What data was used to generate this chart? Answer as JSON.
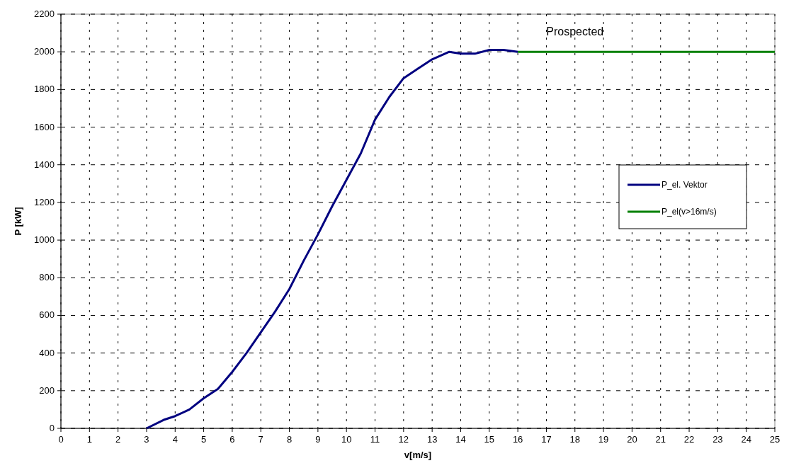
{
  "chart_data": {
    "type": "line",
    "xlabel": "v[m/s]",
    "ylabel": "P [kW]",
    "series": [
      {
        "name": "P_el. Vektor",
        "color": "#000080",
        "x": [
          3,
          3.6,
          4,
          4.5,
          5,
          5.5,
          6,
          6.5,
          7,
          7.5,
          8,
          8.5,
          9,
          9.5,
          10,
          10.5,
          11,
          11.5,
          12,
          12.5,
          13,
          13.6,
          14,
          14.5,
          15,
          15.5,
          16
        ],
        "values": [
          0,
          45,
          65,
          100,
          160,
          210,
          300,
          400,
          510,
          620,
          740,
          890,
          1030,
          1180,
          1320,
          1460,
          1640,
          1760,
          1860,
          1910,
          1960,
          2000,
          1990,
          1990,
          2010,
          2010,
          2000
        ]
      },
      {
        "name": "P_el(v>16m/s)",
        "color": "#008000",
        "x": [
          16,
          25
        ],
        "values": [
          2000,
          2000
        ]
      }
    ],
    "annotations": [
      "Prospected"
    ],
    "xlim": [
      0,
      25
    ],
    "xticks": [
      0,
      1,
      2,
      3,
      4,
      5,
      6,
      7,
      8,
      9,
      10,
      11,
      12,
      13,
      14,
      15,
      16,
      17,
      18,
      19,
      20,
      21,
      22,
      23,
      24,
      25
    ],
    "ylim": [
      0,
      2200
    ],
    "yticks": [
      0,
      200,
      400,
      600,
      800,
      1000,
      1200,
      1400,
      1600,
      1800,
      2000,
      2200
    ],
    "grid": true,
    "legend": "right",
    "line_style": "solid"
  }
}
